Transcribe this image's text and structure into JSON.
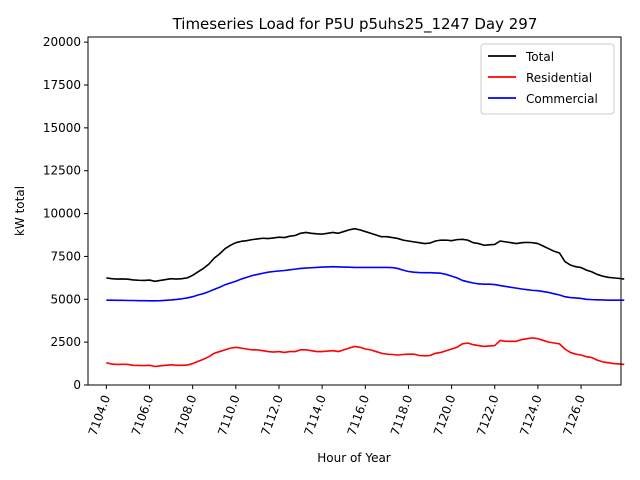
{
  "chart_data": {
    "type": "line",
    "title": "Timeseries Load for P5U p5uhs25_1247  Day 297",
    "xlabel": "Hour of Year",
    "ylabel": "kW total",
    "xlim": [
      7103.15,
      7127.85
    ],
    "ylim": [
      0,
      20300
    ],
    "x_ticks": [
      7104,
      7106,
      7108,
      7110,
      7112,
      7114,
      7116,
      7118,
      7120,
      7122,
      7124,
      7126
    ],
    "x_tick_labels": [
      "7104.0",
      "7106.0",
      "7108.0",
      "7110.0",
      "7112.0",
      "7114.0",
      "7116.0",
      "7118.0",
      "7120.0",
      "7122.0",
      "7124.0",
      "7126.0"
    ],
    "y_ticks": [
      0,
      2500,
      5000,
      7500,
      10000,
      12500,
      15000,
      17500,
      20000
    ],
    "y_tick_labels": [
      "0",
      "2500",
      "5000",
      "7500",
      "10000",
      "12500",
      "15000",
      "17500",
      "20000"
    ],
    "legend_position": "top-right",
    "grid": false,
    "x_start": 7104,
    "x_step": 0.25,
    "series": [
      {
        "name": "Total",
        "color": "#000000",
        "values": [
          6250,
          6200,
          6180,
          6190,
          6170,
          6130,
          6110,
          6100,
          6120,
          6050,
          6100,
          6150,
          6200,
          6180,
          6200,
          6250,
          6400,
          6600,
          6800,
          7050,
          7400,
          7650,
          7950,
          8150,
          8300,
          8380,
          8420,
          8480,
          8520,
          8560,
          8540,
          8580,
          8620,
          8600,
          8680,
          8720,
          8850,
          8900,
          8850,
          8820,
          8800,
          8850,
          8900,
          8850,
          8950,
          9050,
          9120,
          9050,
          8950,
          8850,
          8750,
          8650,
          8650,
          8600,
          8550,
          8450,
          8400,
          8350,
          8300,
          8250,
          8280,
          8400,
          8450,
          8450,
          8420,
          8480,
          8500,
          8450,
          8300,
          8250,
          8150,
          8180,
          8200,
          8400,
          8350,
          8300,
          8250,
          8300,
          8320,
          8300,
          8250,
          8100,
          7950,
          7800,
          7700,
          7200,
          7000,
          6900,
          6850,
          6700,
          6600,
          6450,
          6350,
          6280,
          6250,
          6220,
          6180
        ]
      },
      {
        "name": "Residential",
        "color": "#ff0000",
        "values": [
          1300,
          1220,
          1200,
          1210,
          1200,
          1150,
          1140,
          1130,
          1150,
          1080,
          1120,
          1150,
          1180,
          1150,
          1150,
          1160,
          1250,
          1380,
          1500,
          1650,
          1850,
          1950,
          2050,
          2150,
          2200,
          2150,
          2100,
          2050,
          2050,
          2000,
          1950,
          1920,
          1950,
          1900,
          1950,
          1950,
          2050,
          2050,
          2000,
          1950,
          1950,
          1980,
          2000,
          1950,
          2050,
          2150,
          2250,
          2200,
          2100,
          2050,
          1950,
          1850,
          1800,
          1780,
          1750,
          1780,
          1800,
          1800,
          1720,
          1700,
          1720,
          1850,
          1900,
          2000,
          2100,
          2200,
          2400,
          2450,
          2350,
          2300,
          2250,
          2280,
          2300,
          2600,
          2550,
          2550,
          2550,
          2650,
          2700,
          2750,
          2700,
          2600,
          2500,
          2450,
          2400,
          2100,
          1900,
          1800,
          1750,
          1650,
          1600,
          1450,
          1350,
          1300,
          1250,
          1230,
          1200
        ]
      },
      {
        "name": "Commercial",
        "color": "#0000ff",
        "values": [
          4950,
          4950,
          4940,
          4940,
          4930,
          4930,
          4920,
          4920,
          4910,
          4910,
          4920,
          4940,
          4960,
          4990,
          5030,
          5080,
          5150,
          5250,
          5330,
          5450,
          5580,
          5700,
          5850,
          5950,
          6050,
          6180,
          6280,
          6380,
          6450,
          6520,
          6580,
          6620,
          6650,
          6680,
          6720,
          6760,
          6800,
          6820,
          6840,
          6860,
          6880,
          6890,
          6900,
          6890,
          6880,
          6870,
          6860,
          6860,
          6860,
          6860,
          6860,
          6860,
          6860,
          6850,
          6800,
          6700,
          6620,
          6580,
          6560,
          6550,
          6550,
          6540,
          6520,
          6450,
          6350,
          6250,
          6100,
          6020,
          5950,
          5900,
          5880,
          5880,
          5860,
          5800,
          5750,
          5700,
          5650,
          5600,
          5560,
          5520,
          5500,
          5450,
          5400,
          5320,
          5250,
          5150,
          5100,
          5080,
          5050,
          5000,
          4980,
          4970,
          4960,
          4950,
          4950,
          4950,
          4950
        ]
      }
    ]
  }
}
